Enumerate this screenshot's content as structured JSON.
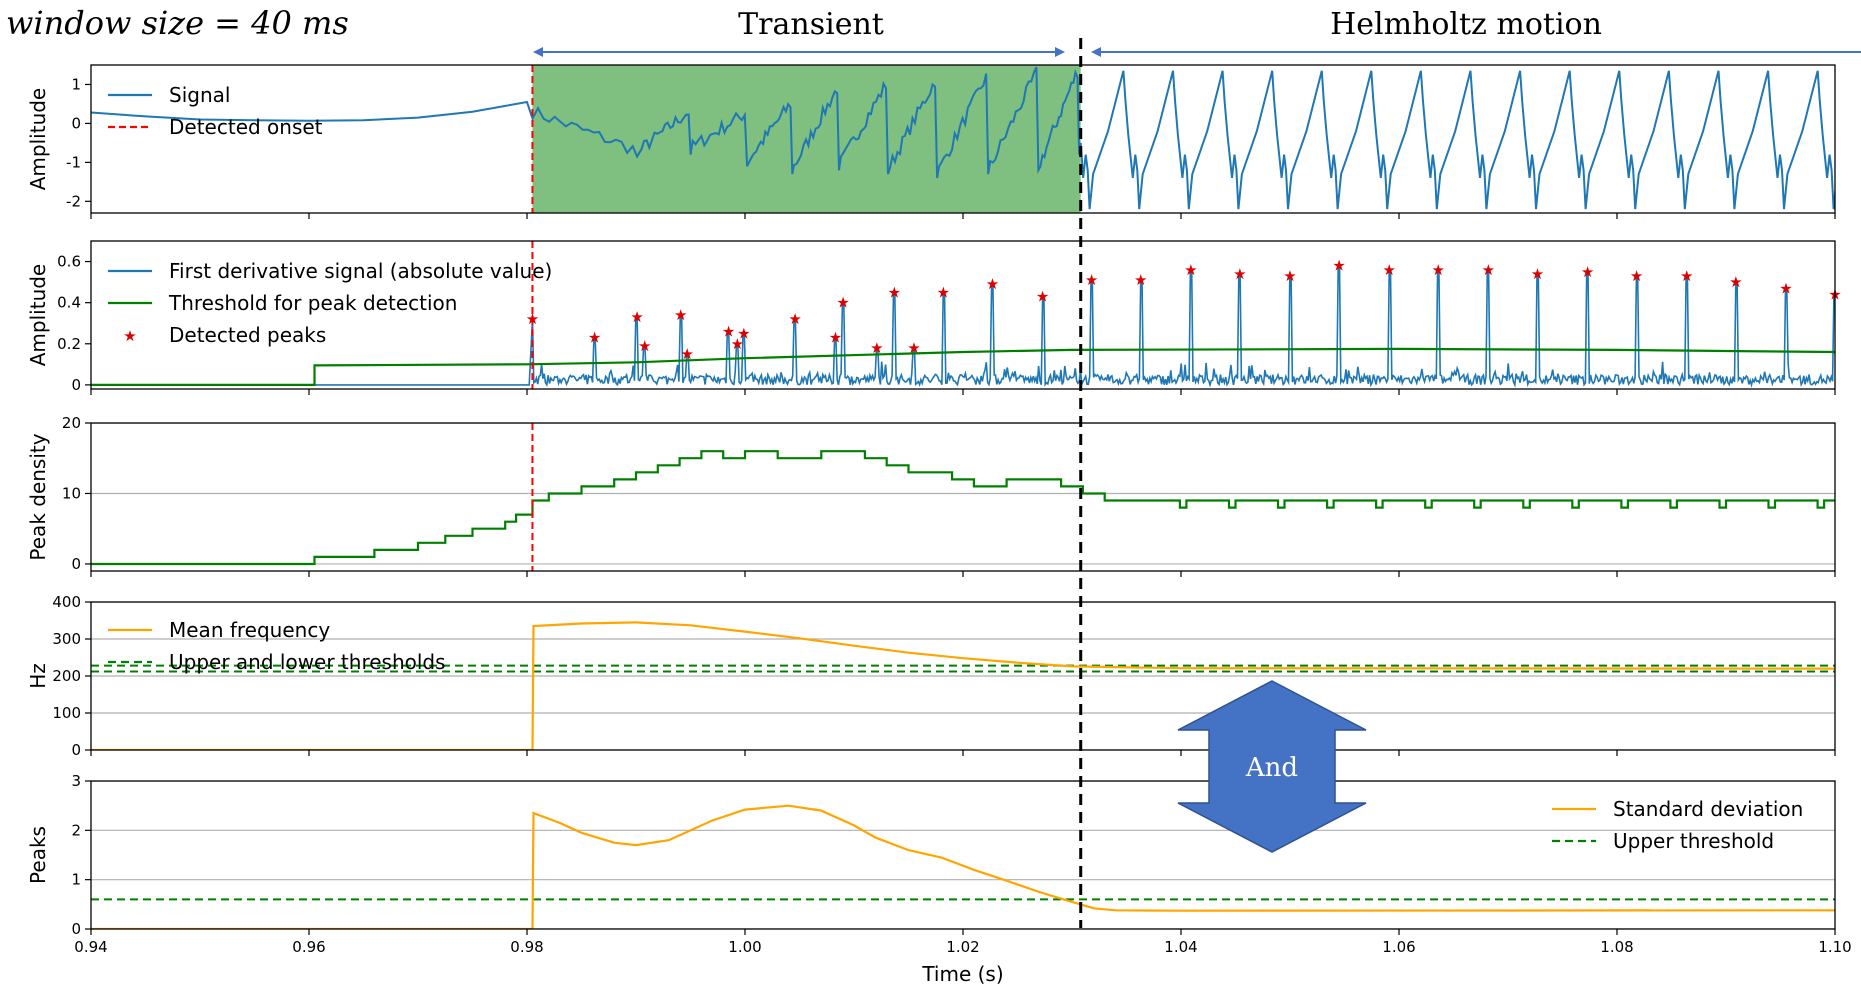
{
  "header": {
    "window_label": "window size = 40 ms",
    "transient_label": "Transient",
    "helmholtz_label": "Helmholtz motion",
    "and_label": "And"
  },
  "colors": {
    "signal": "#1f77b4",
    "onset": "#ff0000",
    "threshold": "#008000",
    "peaks": "#dd0000",
    "orange": "#ffa500",
    "transient_fill": "#7fbf7f",
    "arrow_fill": "#4472c4",
    "grid": "#b0b0b0"
  },
  "chart_data": [
    {
      "type": "line",
      "ylabel": "Amplitude",
      "xlim": [
        0.94,
        1.1
      ],
      "ylim": [
        -2.3,
        1.5
      ],
      "yticks": [
        1,
        0,
        -1,
        -2
      ],
      "onset_x": 0.9805,
      "transient_region": [
        0.9805,
        1.0308
      ],
      "legend": [
        "Signal",
        "Detected onset"
      ],
      "pre_onset_signal": {
        "x": [
          0.94,
          0.945,
          0.95,
          0.955,
          0.96,
          0.965,
          0.97,
          0.975,
          0.98
        ],
        "y": [
          0.28,
          0.18,
          0.1,
          0.08,
          0.07,
          0.08,
          0.15,
          0.3,
          0.55
        ]
      },
      "transient_cycles": [
        [
          0.9805,
          0.3,
          -0.65
        ],
        [
          0.9905,
          -0.65,
          0.3
        ],
        [
          0.9952,
          -0.6,
          0.25
        ],
        [
          1.0004,
          -0.9,
          0.5
        ],
        [
          1.0045,
          -1.1,
          0.9
        ],
        [
          1.0088,
          -1.0,
          1.0
        ],
        [
          1.0133,
          -1.1,
          1.1
        ],
        [
          1.0178,
          -1.2,
          1.2
        ],
        [
          1.0225,
          -1.1,
          1.3
        ],
        [
          1.0271,
          -1.0,
          1.35
        ],
        [
          1.0308,
          -0.6,
          0.5
        ]
      ],
      "helmholtz_period": 0.00455,
      "helmholtz_range": [
        -2.2,
        1.35
      ]
    },
    {
      "type": "line",
      "ylabel": "Amplitude",
      "ylim": [
        -0.02,
        0.7
      ],
      "yticks": [
        0.6,
        0.4,
        0.2,
        0.0
      ],
      "legend": [
        "First derivative signal (absolute value)",
        "Threshold for peak detection",
        "Detected peaks"
      ],
      "threshold": {
        "x": [
          0.94,
          0.9605,
          0.9605,
          0.98,
          0.99,
          1.0,
          1.02,
          1.03,
          1.06,
          1.08,
          1.09,
          1.1
        ],
        "y": [
          0.0,
          0.0,
          0.095,
          0.1,
          0.11,
          0.13,
          0.16,
          0.17,
          0.175,
          0.17,
          0.165,
          0.16
        ]
      },
      "peaks": {
        "x": [
          0.9805,
          0.9862,
          0.9901,
          0.9908,
          0.9941,
          0.9947,
          0.9985,
          0.9993,
          0.9999,
          1.0046,
          1.0083,
          1.009,
          1.0121,
          1.0137,
          1.0155,
          1.0182,
          1.0227,
          1.0273,
          1.0318,
          1.0363,
          1.0409,
          1.0454,
          1.05,
          1.0545,
          1.0591,
          1.0636,
          1.0682,
          1.0727,
          1.0773,
          1.0818,
          1.0864,
          1.0909,
          1.0955,
          1.1
        ],
        "y": [
          0.32,
          0.23,
          0.33,
          0.19,
          0.34,
          0.15,
          0.26,
          0.2,
          0.25,
          0.32,
          0.23,
          0.4,
          0.18,
          0.45,
          0.18,
          0.45,
          0.49,
          0.43,
          0.51,
          0.51,
          0.56,
          0.54,
          0.53,
          0.58,
          0.56,
          0.56,
          0.56,
          0.54,
          0.55,
          0.53,
          0.53,
          0.5,
          0.47,
          0.44
        ]
      }
    },
    {
      "type": "line",
      "ylabel": "Peak density",
      "ylim": [
        -1,
        20
      ],
      "yticks": [
        20,
        10,
        0
      ],
      "grid": true,
      "steps": {
        "x": [
          0.94,
          0.9605,
          0.966,
          0.97,
          0.9725,
          0.975,
          0.978,
          0.979,
          0.9805,
          0.982,
          0.985,
          0.988,
          0.99,
          0.992,
          0.994,
          0.996,
          0.998,
          1.0,
          1.003,
          1.007,
          1.011,
          1.013,
          1.015,
          1.019,
          1.021,
          1.024,
          1.027,
          1.029,
          1.031,
          1.033,
          1.036
        ],
        "y": [
          0,
          1,
          2,
          3,
          4,
          5,
          6,
          7,
          9,
          10,
          11,
          12,
          13,
          14,
          15,
          16,
          15,
          16,
          15,
          16,
          15,
          14,
          13,
          12,
          11,
          12,
          12,
          11,
          10,
          9,
          9
        ]
      },
      "helmholtz_level": [
        9,
        8
      ]
    },
    {
      "type": "line",
      "ylabel": "Hz",
      "ylim": [
        0,
        400
      ],
      "yticks": [
        400,
        300,
        200,
        100,
        0
      ],
      "grid": true,
      "legend": [
        "Mean frequency",
        "Upper and lower thresholds"
      ],
      "thresholds": [
        228,
        212
      ],
      "mean_frequency": {
        "x": [
          0.94,
          0.9805,
          0.9806,
          0.985,
          0.99,
          0.995,
          1.0,
          1.005,
          1.01,
          1.015,
          1.02,
          1.025,
          1.03,
          1.04,
          1.1
        ],
        "y": [
          0,
          0,
          335,
          342,
          345,
          337,
          320,
          302,
          282,
          263,
          248,
          236,
          226,
          221,
          220
        ]
      }
    },
    {
      "type": "line",
      "ylabel": "Peaks",
      "xlabel": "Time (s)",
      "ylim": [
        0,
        3
      ],
      "yticks": [
        3,
        2,
        1,
        0
      ],
      "xticks": [
        "0.94",
        "0.96",
        "0.98",
        "1.00",
        "1.02",
        "1.04",
        "1.06",
        "1.08",
        "1.10"
      ],
      "grid": true,
      "legend": [
        "Standard deviation",
        "Upper threshold"
      ],
      "threshold": 0.6,
      "std": {
        "x": [
          0.94,
          0.9805,
          0.9806,
          0.983,
          0.985,
          0.988,
          0.99,
          0.993,
          0.997,
          1.0,
          1.004,
          1.007,
          1.01,
          1.012,
          1.015,
          1.018,
          1.021,
          1.024,
          1.027,
          1.03,
          1.032,
          1.034,
          1.04,
          1.1
        ],
        "y": [
          0,
          0,
          2.35,
          2.15,
          1.95,
          1.75,
          1.7,
          1.8,
          2.2,
          2.42,
          2.5,
          2.4,
          2.1,
          1.85,
          1.6,
          1.45,
          1.2,
          0.98,
          0.75,
          0.55,
          0.42,
          0.38,
          0.37,
          0.38
        ]
      }
    }
  ]
}
